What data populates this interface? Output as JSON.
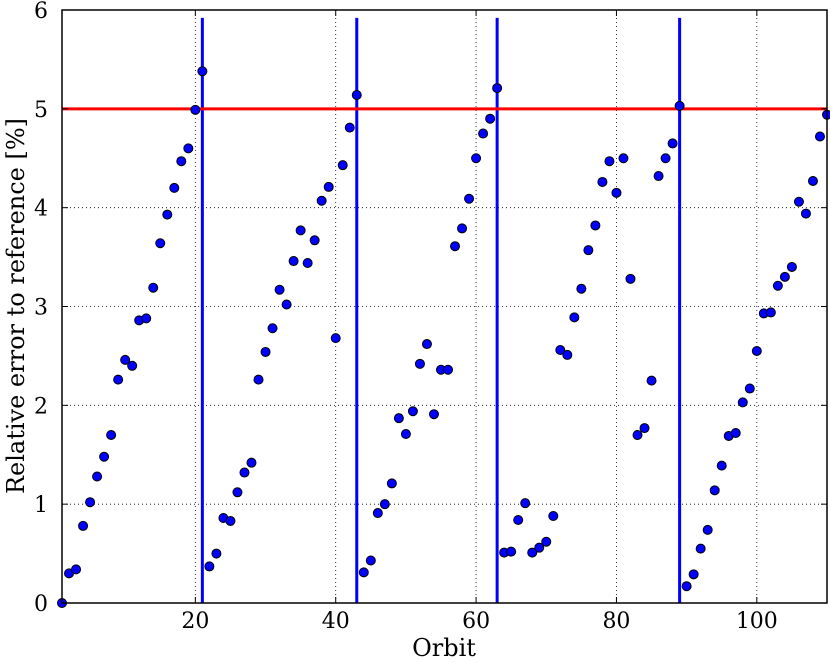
{
  "chart_data": {
    "type": "scatter",
    "title": "",
    "xlabel": "Orbit",
    "ylabel": "Relative error to reference [%]",
    "xlim": [
      1,
      110
    ],
    "ylim": [
      0,
      6
    ],
    "xticks": [
      20,
      40,
      60,
      80,
      100
    ],
    "yticks": [
      0,
      1,
      2,
      3,
      4,
      5,
      6
    ],
    "grid": true,
    "grid_style": "dotted",
    "legend": "none",
    "colors": {
      "points": "#0000ff",
      "points_edge": "#000000",
      "threshold_line": "#ff0000",
      "reset_lines": "#0000ff"
    },
    "threshold": 5,
    "vertical_lines": [
      21,
      43,
      63,
      89
    ],
    "series": [
      {
        "x": [
          1,
          2,
          3,
          4,
          5,
          6,
          7,
          8,
          9,
          10,
          11,
          12,
          13,
          14,
          15,
          16,
          17,
          18,
          19,
          20,
          21,
          22,
          23,
          24,
          25,
          26,
          27,
          28,
          29,
          30,
          31,
          32,
          33,
          34,
          35,
          36,
          37,
          38,
          39,
          40,
          41,
          42,
          43,
          44,
          45,
          46,
          47,
          48,
          49,
          50,
          51,
          52,
          53,
          54,
          55,
          56,
          57,
          58,
          59,
          60,
          61,
          62,
          63,
          64,
          65,
          66,
          67,
          68,
          69,
          70,
          71,
          72,
          73,
          74,
          75,
          76,
          77,
          78,
          79,
          80,
          81,
          82,
          83,
          84,
          85,
          86,
          87,
          88,
          89,
          90,
          91,
          92,
          93,
          94,
          95,
          96,
          97,
          98,
          99,
          100,
          101,
          102,
          103,
          104,
          105,
          106,
          107,
          108,
          109,
          110
        ],
        "y": [
          0.0,
          0.3,
          0.34,
          0.78,
          1.02,
          1.28,
          1.48,
          1.7,
          2.26,
          2.46,
          2.4,
          2.86,
          2.88,
          3.19,
          3.64,
          3.93,
          4.2,
          4.47,
          4.6,
          4.99,
          5.38,
          0.37,
          0.5,
          0.86,
          0.83,
          1.12,
          1.32,
          1.42,
          2.26,
          2.54,
          2.78,
          3.17,
          3.02,
          3.46,
          3.77,
          3.44,
          3.67,
          4.07,
          4.21,
          2.68,
          4.43,
          4.81,
          5.14,
          0.31,
          0.43,
          0.91,
          1.0,
          1.21,
          1.87,
          1.71,
          1.94,
          2.42,
          2.62,
          1.91,
          2.36,
          2.36,
          3.61,
          3.79,
          4.09,
          4.5,
          4.75,
          4.9,
          5.21,
          0.51,
          0.52,
          0.84,
          1.01,
          0.51,
          0.56,
          0.62,
          0.88,
          2.56,
          2.51,
          2.89,
          3.18,
          3.57,
          3.82,
          4.26,
          4.47,
          4.15,
          4.5,
          3.28,
          1.7,
          1.77,
          2.25,
          4.32,
          4.5,
          4.65,
          5.03,
          0.17,
          0.29,
          0.55,
          0.74,
          1.14,
          1.39,
          1.69,
          1.72,
          2.03,
          2.17,
          2.55,
          2.93,
          2.94,
          3.21,
          3.3,
          3.4,
          4.06,
          3.94,
          4.27,
          4.72,
          4.94
        ]
      }
    ]
  }
}
